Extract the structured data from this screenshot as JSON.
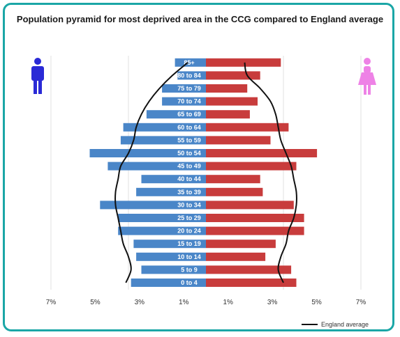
{
  "chart_data": {
    "type": "bar",
    "title": "Population pyramid for most deprived area in the CCG compared to England average",
    "categories": [
      "0 to 4",
      "5 to 9",
      "10 to 14",
      "15 to 19",
      "20 to 24",
      "25 to 29",
      "30 to 34",
      "35 to 39",
      "40 to 44",
      "45 to 49",
      "50 to 54",
      "55 to 59",
      "60 to 64",
      "65 to 69",
      "70 to 74",
      "75 to 79",
      "80 to 84",
      "85+"
    ],
    "series": [
      {
        "side": "left",
        "color": "#4a86c8",
        "values": [
          2.9,
          2.5,
          2.7,
          2.8,
          3.4,
          3.4,
          4.1,
          2.7,
          2.5,
          3.8,
          4.5,
          3.3,
          3.2,
          2.3,
          1.7,
          1.7,
          1.1,
          1.2
        ]
      },
      {
        "side": "right",
        "color": "#c83c3c",
        "values": [
          3.5,
          3.3,
          2.3,
          2.7,
          3.8,
          3.8,
          3.4,
          2.2,
          2.1,
          3.5,
          4.3,
          2.5,
          3.2,
          1.7,
          2.0,
          1.6,
          2.1,
          2.9
        ]
      },
      {
        "name": "England average",
        "type": "line",
        "color": "#111111",
        "left_values": [
          3.1,
          2.9,
          3.0,
          3.2,
          3.3,
          3.4,
          3.5,
          3.5,
          3.4,
          3.3,
          3.0,
          2.8,
          2.7,
          2.5,
          2.2,
          1.8,
          1.3,
          0.7
        ],
        "right_values": [
          3.0,
          2.8,
          2.9,
          3.1,
          3.2,
          3.4,
          3.5,
          3.5,
          3.4,
          3.3,
          3.1,
          2.9,
          2.8,
          2.7,
          2.5,
          2.1,
          1.6,
          1.5
        ]
      }
    ],
    "xticks": [
      "7%",
      "5%",
      "3%",
      "1%",
      "1%",
      "3%",
      "5%",
      "7%"
    ],
    "xlim": [
      -6,
      6
    ],
    "legend": {
      "label": "England average",
      "position": "bottom-right"
    },
    "icons": {
      "male": "male-figure-icon",
      "female": "female-figure-icon",
      "male_color": "#2a2ad6",
      "female_color": "#ee82e6"
    }
  }
}
